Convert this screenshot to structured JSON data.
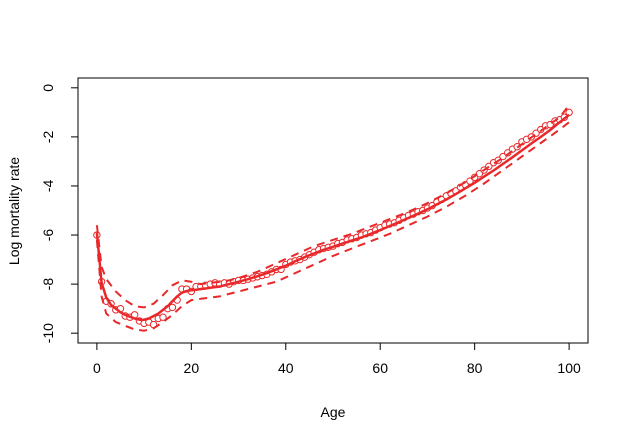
{
  "chart_data": {
    "type": "scatter",
    "xlabel": "Age",
    "ylabel": "Log mortality rate",
    "xlim": [
      -4,
      104
    ],
    "ylim": [
      -10.4,
      0.4
    ],
    "x_ticks": [
      0,
      20,
      40,
      60,
      80,
      100
    ],
    "y_ticks": [
      0,
      -2,
      -4,
      -6,
      -8,
      -10
    ],
    "x_tick_labels": [
      "0",
      "20",
      "40",
      "60",
      "80",
      "100"
    ],
    "y_tick_labels": [
      "0",
      "-2",
      "-4",
      "-6",
      "-8",
      "-10"
    ],
    "grid": false,
    "colors": {
      "points": "#e8282a",
      "fit": "#e8282a",
      "band": "#e8282a"
    },
    "series": [
      {
        "role": "observed",
        "mark": "open-circle",
        "x": [
          0,
          1,
          2,
          3,
          4,
          5,
          6,
          7,
          8,
          9,
          10,
          11,
          12,
          13,
          14,
          15,
          16,
          17,
          18,
          19,
          20,
          21,
          22,
          23,
          24,
          25,
          26,
          27,
          28,
          29,
          30,
          31,
          32,
          33,
          34,
          35,
          36,
          37,
          38,
          39,
          40,
          41,
          42,
          43,
          44,
          45,
          46,
          47,
          48,
          49,
          50,
          51,
          52,
          53,
          54,
          55,
          56,
          57,
          58,
          59,
          60,
          61,
          62,
          63,
          64,
          65,
          66,
          67,
          68,
          69,
          70,
          71,
          72,
          73,
          74,
          75,
          76,
          77,
          78,
          79,
          80,
          81,
          82,
          83,
          84,
          85,
          86,
          87,
          88,
          89,
          90,
          91,
          92,
          93,
          94,
          95,
          96,
          97,
          98,
          99,
          100
        ],
        "y": [
          -6.0,
          -7.9,
          -8.7,
          -8.8,
          -9.05,
          -9.0,
          -9.3,
          -9.35,
          -9.25,
          -9.5,
          -9.6,
          -9.55,
          -9.65,
          -9.4,
          -9.35,
          -9.0,
          -8.95,
          -8.65,
          -8.2,
          -8.2,
          -8.3,
          -8.1,
          -8.1,
          -8.05,
          -8.0,
          -7.95,
          -8.0,
          -7.95,
          -8.0,
          -7.9,
          -7.85,
          -7.85,
          -7.8,
          -7.75,
          -7.7,
          -7.65,
          -7.6,
          -7.5,
          -7.4,
          -7.4,
          -7.2,
          -7.1,
          -7.05,
          -7.0,
          -6.9,
          -6.8,
          -6.7,
          -6.6,
          -6.55,
          -6.5,
          -6.45,
          -6.35,
          -6.3,
          -6.2,
          -6.15,
          -6.1,
          -6.0,
          -5.95,
          -5.9,
          -5.8,
          -5.7,
          -5.6,
          -5.55,
          -5.5,
          -5.4,
          -5.3,
          -5.2,
          -5.15,
          -5.05,
          -5.0,
          -4.9,
          -4.8,
          -4.65,
          -4.55,
          -4.4,
          -4.3,
          -4.2,
          -4.05,
          -3.95,
          -3.8,
          -3.65,
          -3.5,
          -3.35,
          -3.2,
          -3.05,
          -2.95,
          -2.8,
          -2.65,
          -2.5,
          -2.4,
          -2.2,
          -2.1,
          -2.0,
          -1.85,
          -1.7,
          -1.55,
          -1.5,
          -1.35,
          -1.3,
          -1.2,
          -1.0
        ]
      },
      {
        "role": "fitted",
        "mark": "solid-line",
        "x": [
          0,
          1,
          2,
          3,
          4,
          5,
          6,
          7,
          8,
          9,
          10,
          11,
          12,
          13,
          14,
          15,
          16,
          17,
          18,
          19,
          20,
          21,
          22,
          23,
          24,
          25,
          26,
          27,
          28,
          29,
          30,
          32,
          34,
          36,
          38,
          40,
          42,
          44,
          46,
          48,
          50,
          52,
          54,
          56,
          58,
          60,
          62,
          64,
          66,
          68,
          70,
          72,
          74,
          76,
          78,
          80,
          82,
          84,
          86,
          88,
          90,
          92,
          94,
          96,
          98,
          100
        ],
        "y": [
          -5.9,
          -7.95,
          -8.55,
          -8.85,
          -9.0,
          -9.15,
          -9.25,
          -9.33,
          -9.4,
          -9.45,
          -9.45,
          -9.4,
          -9.3,
          -9.2,
          -9.05,
          -8.9,
          -8.7,
          -8.5,
          -8.35,
          -8.28,
          -8.25,
          -8.23,
          -8.2,
          -8.18,
          -8.15,
          -8.12,
          -8.1,
          -8.05,
          -8.0,
          -7.95,
          -7.9,
          -7.8,
          -7.68,
          -7.55,
          -7.4,
          -7.25,
          -7.07,
          -6.9,
          -6.75,
          -6.6,
          -6.48,
          -6.35,
          -6.22,
          -6.1,
          -5.95,
          -5.8,
          -5.63,
          -5.47,
          -5.3,
          -5.13,
          -4.95,
          -4.75,
          -4.55,
          -4.33,
          -4.1,
          -3.87,
          -3.62,
          -3.37,
          -3.1,
          -2.83,
          -2.55,
          -2.27,
          -2.0,
          -1.72,
          -1.4,
          -1.1
        ]
      },
      {
        "role": "upper-bound",
        "mark": "dashed-line",
        "x": [
          0,
          1,
          2,
          4,
          6,
          8,
          10,
          12,
          14,
          16,
          18,
          20,
          22,
          24,
          26,
          28,
          30,
          34,
          38,
          42,
          46,
          50,
          54,
          58,
          62,
          66,
          70,
          74,
          78,
          82,
          86,
          90,
          94,
          98,
          100
        ],
        "y": [
          -5.6,
          -7.3,
          -7.8,
          -8.3,
          -8.65,
          -8.9,
          -8.95,
          -8.8,
          -8.45,
          -8.05,
          -7.85,
          -7.9,
          -8.0,
          -7.95,
          -7.9,
          -7.85,
          -7.75,
          -7.5,
          -7.15,
          -6.8,
          -6.45,
          -6.2,
          -5.95,
          -5.65,
          -5.35,
          -5.05,
          -4.7,
          -4.3,
          -3.85,
          -3.35,
          -2.85,
          -2.3,
          -1.75,
          -1.2,
          -0.7
        ]
      },
      {
        "role": "lower-bound",
        "mark": "dashed-line",
        "x": [
          0,
          1,
          2,
          4,
          6,
          8,
          10,
          12,
          14,
          16,
          18,
          20,
          22,
          24,
          26,
          28,
          30,
          34,
          38,
          42,
          46,
          50,
          54,
          58,
          62,
          66,
          70,
          74,
          78,
          82,
          86,
          90,
          94,
          98,
          100
        ],
        "y": [
          -6.2,
          -8.5,
          -9.2,
          -9.55,
          -9.7,
          -9.85,
          -9.9,
          -9.8,
          -9.55,
          -9.25,
          -8.9,
          -8.65,
          -8.6,
          -8.55,
          -8.5,
          -8.4,
          -8.3,
          -8.1,
          -7.9,
          -7.55,
          -7.2,
          -6.85,
          -6.55,
          -6.25,
          -5.95,
          -5.6,
          -5.25,
          -4.85,
          -4.4,
          -3.9,
          -3.35,
          -2.8,
          -2.25,
          -1.7,
          -1.4
        ]
      }
    ]
  }
}
